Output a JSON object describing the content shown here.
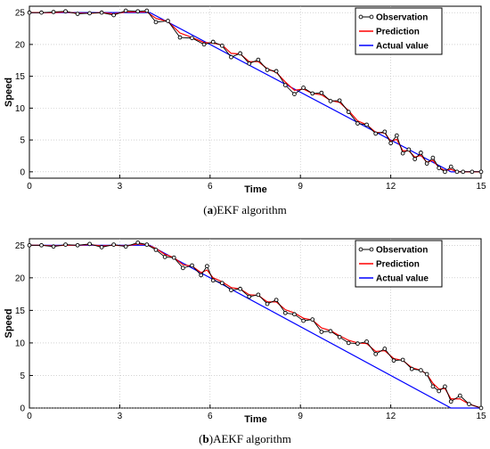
{
  "chart_data": [
    {
      "type": "line",
      "caption_prefix": "(",
      "caption_letter": "a",
      "caption_suffix": ")",
      "caption_text": "EKF algorithm",
      "xlabel": "Time",
      "ylabel": "Speed",
      "xlim": [
        0,
        15
      ],
      "ylim": [
        -1,
        26
      ],
      "xticks": [
        0,
        3,
        6,
        9,
        12,
        15
      ],
      "yticks": [
        0,
        5,
        10,
        15,
        20,
        25
      ],
      "legend_position": "top-right",
      "series": [
        {
          "name": "Observation",
          "color": "#000000",
          "marker": "circle",
          "x": [
            0,
            0.4,
            0.8,
            1.2,
            1.6,
            2,
            2.4,
            2.8,
            3.2,
            3.6,
            3.9,
            4.2,
            4.6,
            5,
            5.4,
            5.8,
            6.1,
            6.4,
            6.7,
            7,
            7.3,
            7.6,
            7.9,
            8.2,
            8.5,
            8.8,
            9.1,
            9.4,
            9.7,
            10,
            10.3,
            10.6,
            10.9,
            11.2,
            11.5,
            11.8,
            12,
            12.2,
            12.4,
            12.6,
            12.8,
            13,
            13.2,
            13.4,
            13.6,
            13.8,
            14,
            14.2,
            14.4,
            14.7,
            15
          ],
          "y": [
            25,
            25,
            25.1,
            25.2,
            24.8,
            24.9,
            25,
            24.6,
            25.3,
            25.2,
            25.3,
            23.5,
            23.7,
            21.1,
            21.0,
            20.0,
            20.4,
            19.8,
            18.0,
            18.6,
            17.0,
            17.6,
            16.0,
            15.8,
            13.6,
            12.2,
            13.2,
            12.3,
            12.4,
            11.1,
            11.2,
            9.4,
            7.6,
            7.4,
            6.0,
            6.3,
            4.5,
            5.7,
            2.9,
            3.5,
            2.0,
            3.0,
            1.3,
            2.2,
            0.6,
            0,
            0.8,
            0,
            0,
            0,
            0
          ]
        },
        {
          "name": "Prediction",
          "color": "#ff0000",
          "x": [
            0,
            0.4,
            0.8,
            1.2,
            1.6,
            2,
            2.4,
            2.8,
            3.2,
            3.6,
            3.9,
            4.2,
            4.6,
            5,
            5.4,
            5.8,
            6.1,
            6.4,
            6.7,
            7,
            7.3,
            7.6,
            7.9,
            8.2,
            8.5,
            8.8,
            9.1,
            9.4,
            9.7,
            10,
            10.3,
            10.6,
            10.9,
            11.2,
            11.5,
            11.8,
            12,
            12.2,
            12.4,
            12.6,
            12.8,
            13,
            13.2,
            13.4,
            13.6,
            13.8,
            14,
            14.2,
            14.4,
            14.7,
            15
          ],
          "y": [
            25,
            25,
            25,
            25.1,
            24.9,
            24.9,
            25,
            24.8,
            25.1,
            25.1,
            25.1,
            24.1,
            23.6,
            21.8,
            21.1,
            20.3,
            20.2,
            19.9,
            18.6,
            18.5,
            17.3,
            17.3,
            16.2,
            15.6,
            14.1,
            12.8,
            13.0,
            12.3,
            12.1,
            11.2,
            10.9,
            9.6,
            8.0,
            7.4,
            6.2,
            6.1,
            4.8,
            5.1,
            3.3,
            3.3,
            2.3,
            2.6,
            1.5,
            1.8,
            0.7,
            0.2,
            0.4,
            0,
            0,
            0,
            0
          ]
        },
        {
          "name": "Actual value",
          "color": "#0000ff",
          "x": [
            0,
            4,
            14,
            15
          ],
          "y": [
            25,
            25,
            0,
            0
          ]
        }
      ]
    },
    {
      "type": "line",
      "caption_prefix": "(",
      "caption_letter": "b",
      "caption_suffix": ")",
      "caption_text": "AEKF algorithm",
      "xlabel": "Time",
      "ylabel": "Speed",
      "xlim": [
        0,
        15
      ],
      "ylim": [
        0,
        26
      ],
      "xticks": [
        0,
        3,
        6,
        9,
        12,
        15
      ],
      "yticks": [
        0,
        5,
        10,
        15,
        20,
        25
      ],
      "legend_position": "top-right",
      "series": [
        {
          "name": "Observation",
          "color": "#000000",
          "marker": "circle",
          "x": [
            0,
            0.4,
            0.8,
            1.2,
            1.6,
            2,
            2.4,
            2.8,
            3.2,
            3.6,
            3.9,
            4.2,
            4.5,
            4.8,
            5.1,
            5.4,
            5.7,
            5.9,
            6.1,
            6.4,
            6.7,
            7,
            7.3,
            7.6,
            7.9,
            8.2,
            8.5,
            8.8,
            9.1,
            9.4,
            9.7,
            10,
            10.3,
            10.6,
            10.9,
            11.2,
            11.5,
            11.8,
            12.1,
            12.4,
            12.7,
            13,
            13.2,
            13.4,
            13.6,
            13.8,
            14,
            14.3,
            14.6,
            15
          ],
          "y": [
            25,
            25,
            24.8,
            25.1,
            25,
            25.2,
            24.7,
            25.1,
            24.8,
            25.4,
            25.1,
            24.3,
            23.2,
            23.1,
            21.5,
            21.9,
            20.4,
            21.8,
            19.6,
            19.2,
            18.1,
            18.3,
            17.1,
            17.4,
            16.0,
            16.6,
            14.6,
            14.4,
            13.4,
            13.6,
            11.7,
            11.8,
            10.9,
            10.0,
            9.9,
            10.2,
            8.3,
            9.1,
            7.3,
            7.4,
            6.0,
            5.8,
            5.2,
            3.3,
            2.6,
            3.3,
            1.0,
            1.9,
            0.6,
            0
          ]
        },
        {
          "name": "Prediction",
          "color": "#ff0000",
          "x": [
            0,
            0.4,
            0.8,
            1.2,
            1.6,
            2,
            2.4,
            2.8,
            3.2,
            3.6,
            3.9,
            4.2,
            4.5,
            4.8,
            5.1,
            5.4,
            5.7,
            5.9,
            6.1,
            6.4,
            6.7,
            7,
            7.3,
            7.6,
            7.9,
            8.2,
            8.5,
            8.8,
            9.1,
            9.4,
            9.7,
            10,
            10.3,
            10.6,
            10.9,
            11.2,
            11.5,
            11.8,
            12.1,
            12.4,
            12.7,
            13,
            13.2,
            13.4,
            13.6,
            13.8,
            14,
            14.3,
            14.6,
            15
          ],
          "y": [
            25,
            25,
            24.9,
            25,
            25,
            25.1,
            24.9,
            25,
            24.9,
            25.2,
            25.1,
            24.5,
            23.6,
            23.1,
            22.0,
            21.8,
            20.8,
            21.2,
            20.0,
            19.4,
            18.5,
            18.3,
            17.4,
            17.3,
            16.3,
            16.3,
            15.1,
            14.6,
            13.8,
            13.5,
            12.3,
            11.9,
            11.1,
            10.4,
            10.0,
            9.9,
            8.7,
            8.8,
            7.6,
            7.3,
            6.2,
            5.8,
            5.2,
            3.8,
            2.9,
            3.0,
            1.4,
            1.4,
            0.6,
            0
          ]
        },
        {
          "name": "Actual value",
          "color": "#0000ff",
          "x": [
            0,
            4,
            14,
            15
          ],
          "y": [
            25,
            25,
            0,
            0
          ]
        }
      ]
    }
  ]
}
